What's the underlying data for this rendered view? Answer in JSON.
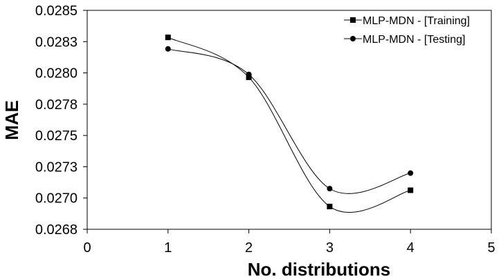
{
  "chart_data": {
    "type": "line",
    "xlabel": "No. distributions",
    "ylabel": "MAE",
    "xlim": [
      0,
      5
    ],
    "ylim": [
      0.02675,
      0.0285
    ],
    "x_ticks": [
      0,
      1,
      2,
      3,
      4,
      5
    ],
    "x_tick_labels": [
      "0",
      "1",
      "2",
      "3",
      "4",
      "5"
    ],
    "y_ticks": [
      0.02675,
      0.027,
      0.02725,
      0.0275,
      0.02775,
      0.028,
      0.02825,
      0.0285
    ],
    "y_tick_labels": [
      "0.0268",
      "0.0270",
      "0.0273",
      "0.0275",
      "0.0278",
      "0.0280",
      "0.0283",
      "0.0285"
    ],
    "grid": false,
    "legend_position": "top-right",
    "smooth": true,
    "series": [
      {
        "name": "MLP-MDN - [Training]",
        "marker": "square",
        "x": [
          1,
          2,
          3,
          4
        ],
        "values": [
          0.028284,
          0.027965,
          0.026932,
          0.027062
        ]
      },
      {
        "name": "MLP-MDN - [Testing]",
        "marker": "circle",
        "x": [
          1,
          2,
          3,
          4
        ],
        "values": [
          0.028192,
          0.027988,
          0.027075,
          0.027199
        ]
      }
    ]
  }
}
